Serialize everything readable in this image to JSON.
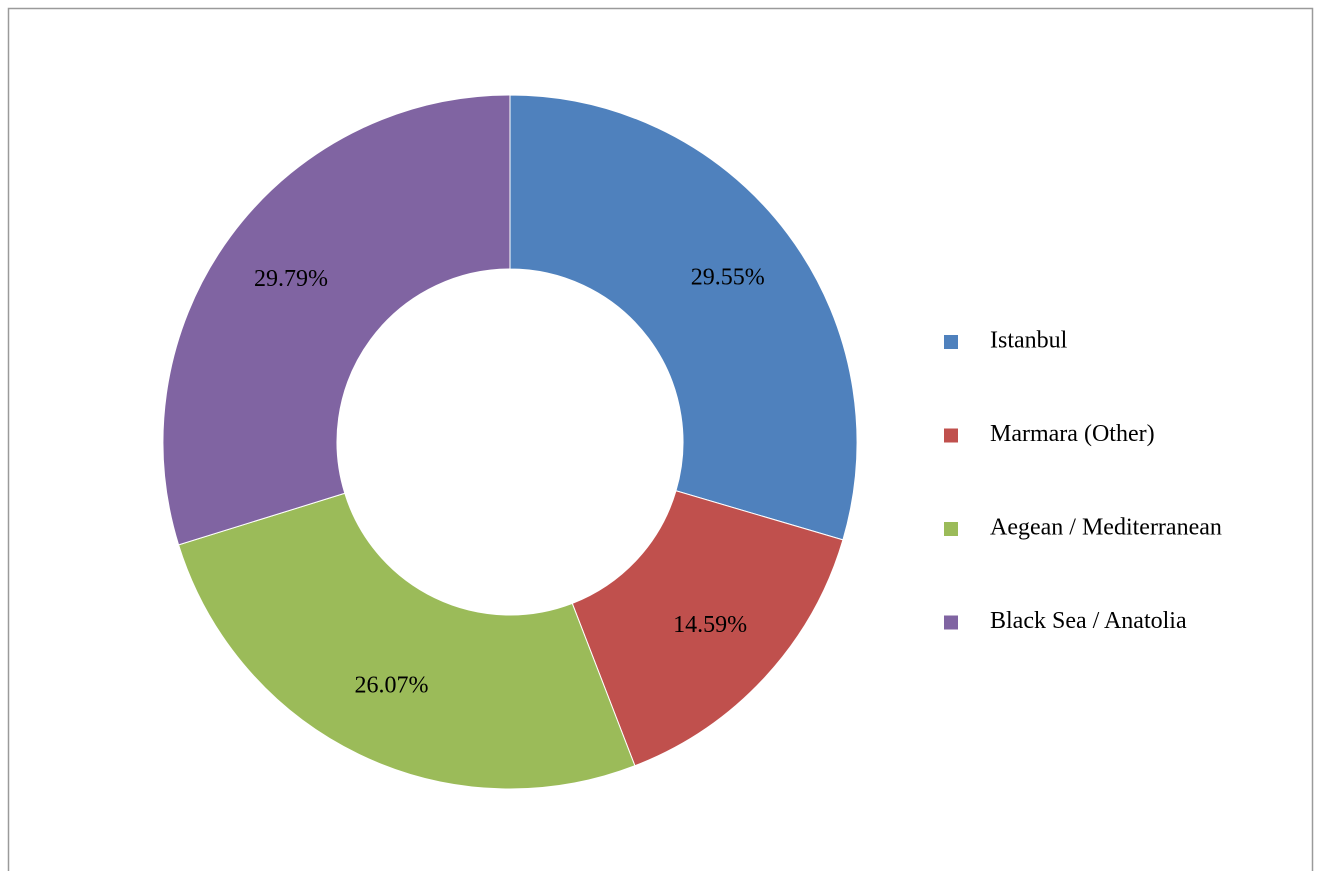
{
  "chart_data": {
    "type": "donut",
    "categories": [
      "Istanbul",
      "Marmara (Other)",
      "Aegean / Mediterranean",
      "Black Sea / Anatolia"
    ],
    "values": [
      29.55,
      14.59,
      26.07,
      29.79
    ],
    "value_labels": [
      "29.55%",
      "14.59%",
      "26.07%",
      "29.79%"
    ],
    "colors": [
      "#4f81bd",
      "#c0504d",
      "#9bbb59",
      "#8064a2"
    ],
    "legend": "right"
  }
}
